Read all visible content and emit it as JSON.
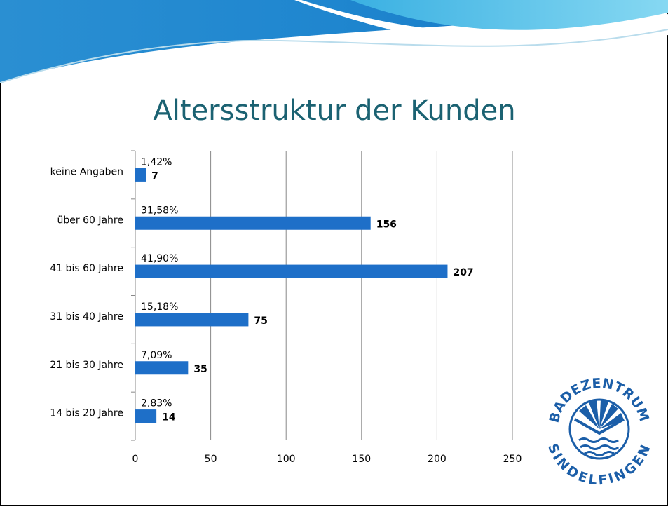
{
  "chart_data": {
    "type": "bar",
    "orientation": "horizontal",
    "title": "Altersstruktur der Kunden",
    "categories": [
      "keine Angaben",
      "über 60 Jahre",
      "41 bis 60 Jahre",
      "31 bis 40 Jahre",
      "21 bis 30 Jahre",
      "14 bis 20 Jahre"
    ],
    "values": [
      7,
      156,
      207,
      75,
      35,
      14
    ],
    "percent_labels": [
      "1,42%",
      "31,58%",
      "41,90%",
      "15,18%",
      "7,09%",
      "2,83%"
    ],
    "color": "#1e6fc8",
    "xlim": [
      0,
      250
    ],
    "xticks": [
      0,
      50,
      100,
      150,
      200,
      250
    ],
    "grid": true
  },
  "logo": {
    "top": "BADEZENTRUM",
    "bottom": "SINDELFINGEN"
  }
}
